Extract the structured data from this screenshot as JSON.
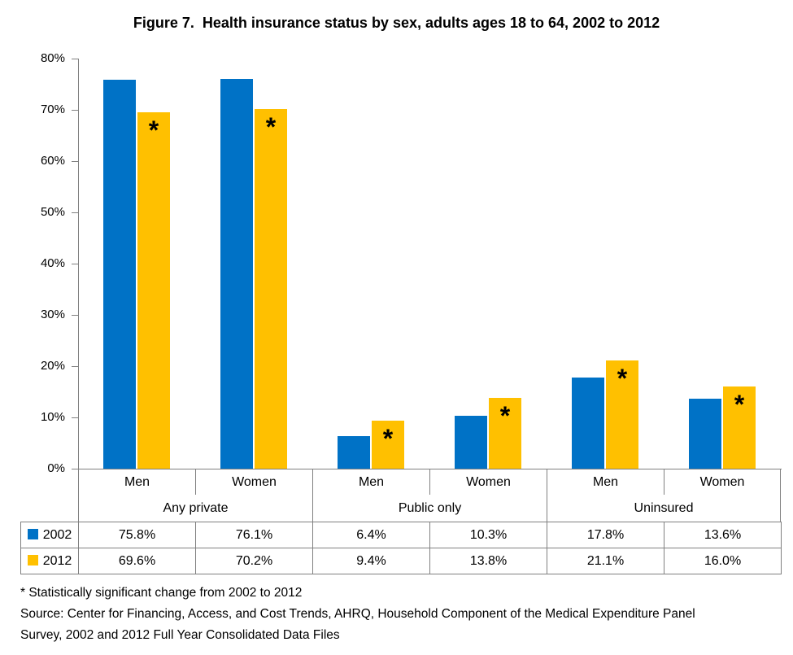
{
  "title": "Figure 7.  Health insurance status by sex, adults ages 18 to 64, 2002 to 2012",
  "colors": {
    "series_2002": "#0072C6",
    "series_2012": "#FFC000",
    "grid_border": "#808080",
    "text": "#000000",
    "background": "#FFFFFF"
  },
  "chart_data": {
    "type": "bar",
    "title": "Figure 7.  Health insurance status by sex, adults ages 18 to 64, 2002 to 2012",
    "xlabel": "",
    "ylabel": "",
    "ylim": [
      0,
      80
    ],
    "grid": false,
    "legend_position": "data-table-left-column",
    "y_ticks": [
      {
        "value": 0,
        "label": "0%"
      },
      {
        "value": 10,
        "label": "10%"
      },
      {
        "value": 20,
        "label": "20%"
      },
      {
        "value": 30,
        "label": "30%"
      },
      {
        "value": 40,
        "label": "40%"
      },
      {
        "value": 50,
        "label": "50%"
      },
      {
        "value": 60,
        "label": "60%"
      },
      {
        "value": 70,
        "label": "70%"
      },
      {
        "value": 80,
        "label": "80%"
      }
    ],
    "group_labels": [
      "Any private",
      "Public only",
      "Uninsured"
    ],
    "sex_labels": [
      "Men",
      "Women"
    ],
    "categories": [
      "Any private Men",
      "Any private Women",
      "Public only Men",
      "Public only Women",
      "Uninsured Men",
      "Uninsured Women"
    ],
    "series": [
      {
        "name": "2002",
        "color": "#0072C6",
        "values": [
          75.8,
          76.1,
          6.4,
          10.3,
          17.8,
          13.6
        ],
        "significant": [
          false,
          false,
          false,
          false,
          false,
          false
        ]
      },
      {
        "name": "2012",
        "color": "#FFC000",
        "values": [
          69.6,
          70.2,
          9.4,
          13.8,
          21.1,
          16.0
        ],
        "significant": [
          true,
          true,
          true,
          true,
          true,
          true
        ]
      }
    ],
    "significance_marker": "*"
  },
  "data_table": {
    "rows": [
      {
        "label": "2002",
        "swatch_color": "#0072C6",
        "values": [
          "75.8%",
          "76.1%",
          "6.4%",
          "10.3%",
          "17.8%",
          "13.6%"
        ]
      },
      {
        "label": "2012",
        "swatch_color": "#FFC000",
        "values": [
          "69.6%",
          "70.2%",
          "9.4%",
          "13.8%",
          "21.1%",
          "16.0%"
        ]
      }
    ]
  },
  "footnotes": {
    "significance": "* Statistically significant change from 2002 to 2012",
    "source": "Source: Center for Financing, Access, and Cost Trends, AHRQ, Household Component of the Medical Expenditure Panel Survey, 2002 and 2012 Full Year Consolidated Data Files"
  }
}
